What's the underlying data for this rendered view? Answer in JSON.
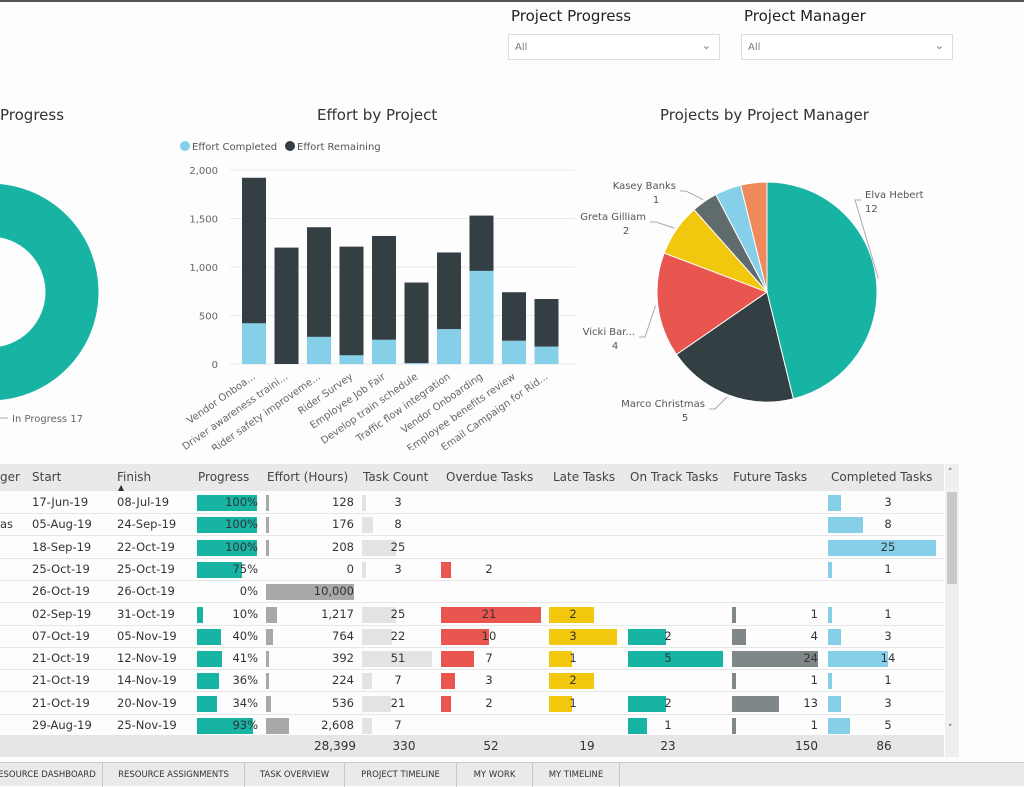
{
  "filters": [
    {
      "title": "Project Progress",
      "value": "All"
    },
    {
      "title": "Project Manager",
      "value": "All"
    }
  ],
  "donut": {
    "title": "Progress",
    "label": "In Progress 17",
    "color": "#17b3a3"
  },
  "chart_data": [
    {
      "type": "bar",
      "stacked": true,
      "title": "Effort by Project",
      "categories": [
        "Vendor Onboa...",
        "Driver awareness traini...",
        "Rider safety improveme...",
        "Rider Survey",
        "Employee Job Fair",
        "Develop train schedule",
        "Traffic flow integration",
        "Vendor Onboarding",
        "Employee benefits review",
        "Email Campaign for Rid..."
      ],
      "series": [
        {
          "name": "Effort Completed",
          "color": "#86cfe8",
          "values": [
            420,
            0,
            280,
            90,
            250,
            10,
            360,
            960,
            240,
            180
          ]
        },
        {
          "name": "Effort Remaining",
          "color": "#343f44",
          "values": [
            1500,
            1200,
            1130,
            1120,
            1070,
            830,
            790,
            570,
            500,
            490
          ]
        }
      ],
      "yticks": [
        "0",
        "500",
        "1,000",
        "1,500",
        "2,000"
      ],
      "ylim": [
        0,
        2000
      ],
      "legend": "top-left",
      "grid": true
    },
    {
      "type": "pie",
      "title": "Projects by Project Manager",
      "slices": [
        {
          "label": "Elva Hebert",
          "value": 12,
          "color": "#17b3a3",
          "shown": true
        },
        {
          "label": "Marco Christmas",
          "value": 5,
          "color": "#343f44",
          "shown": true
        },
        {
          "label": "Vicki Bar...",
          "value": 4,
          "color": "#e8564f",
          "shown": true
        },
        {
          "label": "Greta Gilliam",
          "value": 2,
          "color": "#f2c80f",
          "shown": true
        },
        {
          "label": "Kasey Banks",
          "value": 1,
          "color": "#5f6b6d",
          "shown": true
        },
        {
          "label": "",
          "value": 1,
          "color": "#86cfe8",
          "shown": false
        },
        {
          "label": "",
          "value": 1,
          "color": "#f08a5d",
          "shown": false
        }
      ]
    }
  ],
  "table": {
    "headers": [
      "ger",
      "Start",
      "Finish",
      "Progress",
      "Effort (Hours)",
      "Task Count",
      "Overdue Tasks",
      "Late Tasks",
      "On Track Tasks",
      "Future Tasks",
      "Completed Tasks"
    ],
    "sort_indicator": "▲",
    "rows": [
      {
        "manager": "",
        "start": "17-Jun-19",
        "finish": "08-Jul-19",
        "progress": "100%",
        "effort": "128",
        "tasks": "3",
        "overdue": "",
        "late": "",
        "ontrack": "",
        "future": "",
        "completed": "3"
      },
      {
        "manager": "as",
        "start": "05-Aug-19",
        "finish": "24-Sep-19",
        "progress": "100%",
        "effort": "176",
        "tasks": "8",
        "overdue": "",
        "late": "",
        "ontrack": "",
        "future": "",
        "completed": "8"
      },
      {
        "manager": "",
        "start": "18-Sep-19",
        "finish": "22-Oct-19",
        "progress": "100%",
        "effort": "208",
        "tasks": "25",
        "overdue": "",
        "late": "",
        "ontrack": "",
        "future": "",
        "completed": "25"
      },
      {
        "manager": "",
        "start": "25-Oct-19",
        "finish": "25-Oct-19",
        "progress": "75%",
        "effort": "0",
        "tasks": "3",
        "overdue": "2",
        "late": "",
        "ontrack": "",
        "future": "",
        "completed": "1"
      },
      {
        "manager": "",
        "start": "26-Oct-19",
        "finish": "26-Oct-19",
        "progress": "0%",
        "effort": "10,000",
        "tasks": "",
        "overdue": "",
        "late": "",
        "ontrack": "",
        "future": "",
        "completed": ""
      },
      {
        "manager": "",
        "start": "02-Sep-19",
        "finish": "31-Oct-19",
        "progress": "10%",
        "effort": "1,217",
        "tasks": "25",
        "overdue": "21",
        "late": "2",
        "ontrack": "",
        "future": "1",
        "completed": "1"
      },
      {
        "manager": "",
        "start": "07-Oct-19",
        "finish": "05-Nov-19",
        "progress": "40%",
        "effort": "764",
        "tasks": "22",
        "overdue": "10",
        "late": "3",
        "ontrack": "2",
        "future": "4",
        "completed": "3"
      },
      {
        "manager": "",
        "start": "21-Oct-19",
        "finish": "12-Nov-19",
        "progress": "41%",
        "effort": "392",
        "tasks": "51",
        "overdue": "7",
        "late": "1",
        "ontrack": "5",
        "future": "24",
        "completed": "14"
      },
      {
        "manager": "",
        "start": "21-Oct-19",
        "finish": "14-Nov-19",
        "progress": "36%",
        "effort": "224",
        "tasks": "7",
        "overdue": "3",
        "late": "2",
        "ontrack": "",
        "future": "1",
        "completed": "1"
      },
      {
        "manager": "",
        "start": "21-Oct-19",
        "finish": "20-Nov-19",
        "progress": "34%",
        "effort": "536",
        "tasks": "21",
        "overdue": "2",
        "late": "1",
        "ontrack": "2",
        "future": "13",
        "completed": "3"
      },
      {
        "manager": "",
        "start": "29-Aug-19",
        "finish": "25-Nov-19",
        "progress": "93%",
        "effort": "2,608",
        "tasks": "7",
        "overdue": "",
        "late": "",
        "ontrack": "1",
        "future": "1",
        "completed": "5"
      }
    ],
    "totals": {
      "effort": "28,399",
      "tasks": "330",
      "overdue": "52",
      "late": "19",
      "ontrack": "23",
      "future": "150",
      "completed": "86"
    },
    "colors": {
      "progress": "#17b3a3",
      "effort": "#a8a8a8",
      "tasks": "#e3e3e3",
      "overdue": "#e8564f",
      "late": "#f2c80f",
      "ontrack": "#17b3a3",
      "future": "#808789",
      "completed": "#86cfe8"
    }
  },
  "tabs": [
    "RESOURCE DASHBOARD",
    "RESOURCE ASSIGNMENTS",
    "TASK OVERVIEW",
    "PROJECT TIMELINE",
    "MY WORK",
    "MY TIMELINE"
  ]
}
